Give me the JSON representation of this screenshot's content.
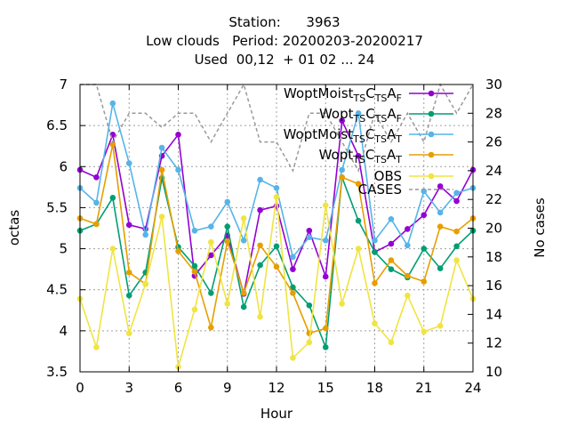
{
  "title_lines": [
    "Station:      3963",
    "Low clouds   Period: 20200203-20200217",
    "Used  00,12  + 01 02 ... 24"
  ],
  "chart_data": {
    "type": "line",
    "title": "Station:      3963 / Low clouds   Period: 20200203-20200217 / Used  00,12  + 01 02 ... 24",
    "xlabel": "Hour",
    "ylabel": "octas",
    "y2label": "No cases",
    "xlim": [
      0,
      24
    ],
    "ylim": [
      3.5,
      7
    ],
    "y2lim": [
      10,
      30
    ],
    "xticks": [
      "0",
      "3",
      "6",
      "9",
      "12",
      "15",
      "18",
      "21",
      "24"
    ],
    "yticks": [
      "3.5",
      "4",
      "4.5",
      "5",
      "5.5",
      "6",
      "6.5",
      "7"
    ],
    "y2ticks": [
      "10",
      "12",
      "14",
      "16",
      "18",
      "20",
      "22",
      "24",
      "26",
      "28",
      "30"
    ],
    "grid": true,
    "legend_position": "top-right",
    "x": [
      0,
      1,
      2,
      3,
      4,
      5,
      6,
      7,
      8,
      9,
      10,
      11,
      12,
      13,
      14,
      15,
      16,
      17,
      18,
      19,
      20,
      21,
      22,
      23,
      24
    ],
    "series": [
      {
        "name": "WoptMoist_TS C_TS A_F",
        "label_parts": [
          "WoptMoist",
          "TS",
          "C",
          "TS",
          "A",
          "F"
        ],
        "color": "#9400d3",
        "marker": "circle",
        "axis": "y",
        "values": [
          5.96,
          5.87,
          6.39,
          5.29,
          5.24,
          6.13,
          6.39,
          4.67,
          4.92,
          5.16,
          4.45,
          5.47,
          5.52,
          4.75,
          5.22,
          4.66,
          6.56,
          6.13,
          4.96,
          5.06,
          5.24,
          5.41,
          5.76,
          5.58,
          5.96
        ]
      },
      {
        "name": "Wopt_TS C_TS A_F",
        "label_parts": [
          "Wopt",
          "TS",
          "C",
          "TS",
          "A",
          "F"
        ],
        "color": "#009e73",
        "marker": "circle",
        "axis": "y",
        "values": [
          5.22,
          5.3,
          5.62,
          4.43,
          4.71,
          5.86,
          5.02,
          4.79,
          4.46,
          5.27,
          4.29,
          4.8,
          5.03,
          4.53,
          4.31,
          3.8,
          5.87,
          5.34,
          4.96,
          4.75,
          4.65,
          5.0,
          4.76,
          5.03,
          5.22
        ]
      },
      {
        "name": "WoptMoist_TS C_TS A_T",
        "label_parts": [
          "WoptMoist",
          "TS",
          "C",
          "TS",
          "A",
          "T"
        ],
        "color": "#56b4e9",
        "marker": "circle",
        "axis": "y",
        "values": [
          5.74,
          5.56,
          6.77,
          6.04,
          5.17,
          6.23,
          5.96,
          5.22,
          5.27,
          5.57,
          5.1,
          5.84,
          5.74,
          4.9,
          5.14,
          5.1,
          5.96,
          6.65,
          5.1,
          5.36,
          5.04,
          5.7,
          5.44,
          5.68,
          5.74
        ]
      },
      {
        "name": "Wopt_TS C_TS A_T",
        "label_parts": [
          "Wopt",
          "TS",
          "C",
          "TS",
          "A",
          "T"
        ],
        "color": "#e69f00",
        "marker": "circle",
        "axis": "y",
        "values": [
          5.37,
          5.3,
          6.27,
          4.71,
          4.57,
          5.96,
          4.97,
          4.72,
          4.04,
          5.09,
          4.46,
          5.04,
          4.78,
          4.46,
          3.97,
          4.03,
          5.87,
          5.79,
          4.58,
          4.86,
          4.67,
          4.6,
          5.27,
          5.21,
          5.37
        ]
      },
      {
        "name": "OBS",
        "label_parts": [
          "OBS"
        ],
        "color": "#f0e442",
        "marker": "circle",
        "axis": "y",
        "values": [
          4.39,
          3.8,
          5.0,
          3.97,
          4.57,
          5.39,
          3.56,
          4.26,
          5.08,
          4.33,
          5.37,
          4.17,
          5.63,
          3.67,
          3.86,
          5.53,
          4.33,
          5.0,
          4.09,
          3.86,
          4.43,
          3.99,
          4.06,
          4.86,
          4.39
        ]
      },
      {
        "name": "CASES",
        "label_parts": [
          "CASES"
        ],
        "color": "#999999",
        "marker": "none",
        "dashed": true,
        "axis": "y2",
        "values": [
          30,
          30,
          26,
          28,
          28,
          27,
          28,
          28,
          26,
          28,
          30,
          26,
          26,
          24,
          28,
          28,
          26,
          24,
          28,
          26,
          28,
          26,
          30,
          28,
          30
        ]
      }
    ]
  }
}
